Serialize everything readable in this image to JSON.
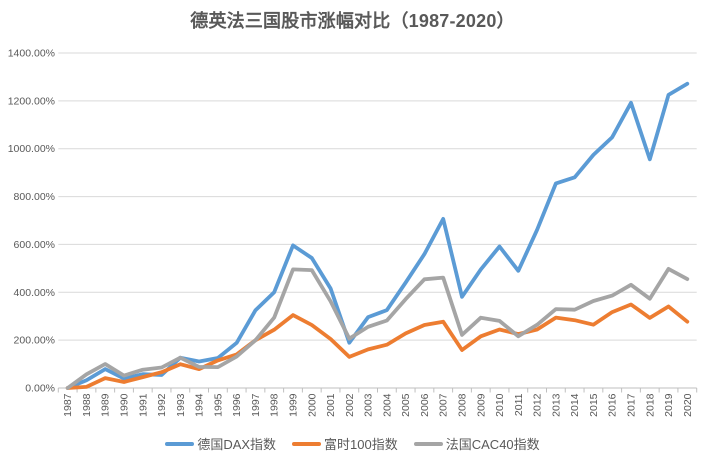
{
  "styles": {
    "background": "#FFFFFF",
    "title_color": "#595959",
    "axis_label_color": "#595959",
    "gridline_color": "#D9D9D9",
    "axis_line_color": "#BFBFBF"
  },
  "chart_data": {
    "type": "line",
    "title": "德英法三国股市涨幅对比（1987-2020）",
    "xlabel": "",
    "ylabel": "",
    "ylim": [
      0,
      1400
    ],
    "y_unit": "%",
    "grid": true,
    "legend_position": "bottom",
    "y_tick_labels": [
      "0.00%",
      "200.00%",
      "400.00%",
      "600.00%",
      "800.00%",
      "1000.00%",
      "1200.00%",
      "1400.00%"
    ],
    "categories": [
      "1987",
      "1988",
      "1989",
      "1990",
      "1991",
      "1992",
      "1993",
      "1994",
      "1995",
      "1996",
      "1997",
      "1998",
      "1999",
      "2000",
      "2001",
      "2002",
      "2003",
      "2004",
      "2005",
      "2006",
      "2007",
      "2008",
      "2009",
      "2010",
      "2011",
      "2012",
      "2013",
      "2014",
      "2015",
      "2016",
      "2017",
      "2018",
      "2019",
      "2020"
    ],
    "series": [
      {
        "name": "德国DAX指数",
        "color": "#5B9BD5",
        "values": [
          0,
          32.8,
          79.0,
          39.8,
          57.8,
          54.5,
          126.7,
          110.7,
          125.4,
          188.9,
          325.0,
          400.2,
          595.8,
          543.4,
          416.0,
          189.3,
          296.5,
          325.6,
          440.8,
          559.7,
          706.7,
          381.0,
          495.7,
          591.4,
          489.8,
          661.2,
          855.2,
          880.6,
          974.3,
          1048.1,
          1191.8,
          955.9,
          1224.9,
          1271.9
        ]
      },
      {
        "name": "富时100指数",
        "color": "#ED7D31",
        "values": [
          0,
          4.7,
          41.5,
          25.2,
          45.6,
          66.2,
          99.6,
          79.0,
          115.4,
          140.5,
          199.9,
          243.5,
          304.6,
          263.3,
          204.6,
          130.1,
          161.4,
          181.1,
          228.1,
          263.2,
          277.0,
          158.9,
          216.0,
          244.5,
          225.4,
          244.4,
          294.1,
          283.4,
          264.5,
          317.1,
          348.9,
          292.8,
          340.4,
          277.2
        ]
      },
      {
        "name": "法国CAC40指数",
        "color": "#A5A5A5",
        "values": [
          0,
          57.3,
          100.1,
          51.8,
          76.6,
          85.8,
          126.8,
          88.1,
          87.2,
          131.6,
          199.9,
          294.3,
          495.8,
          492.6,
          362.5,
          206.4,
          255.8,
          282.1,
          371.5,
          454.2,
          461.4,
          221.8,
          293.6,
          280.5,
          216.0,
          264.1,
          329.6,
          327.3,
          363.7,
          386.2,
          431.3,
          373.1,
          497.8,
          455.1
        ]
      }
    ]
  }
}
